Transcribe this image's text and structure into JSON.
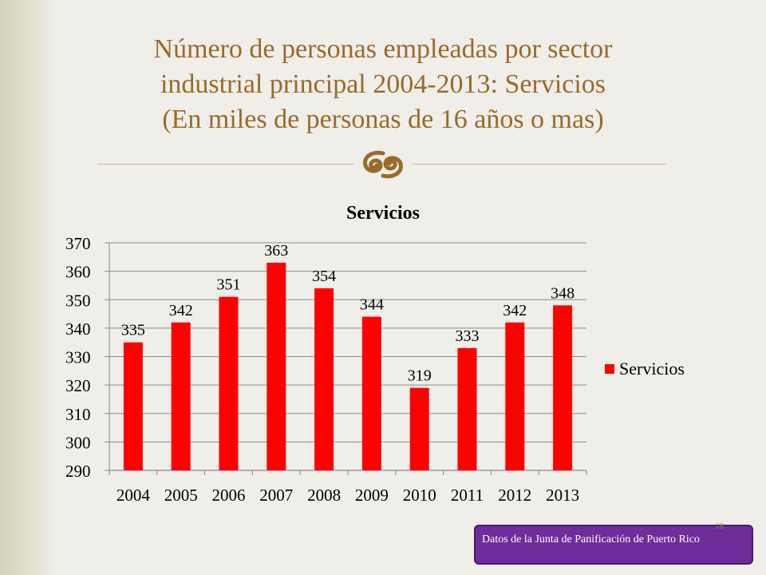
{
  "slide": {
    "title_lines": [
      "Número de personas empleadas por sector",
      "industrial principal 2004-2013: Servicios",
      "(En miles de personas de 16 años o mas)"
    ],
    "title_color": "#9a6a28",
    "ornament_icon": "scroll-ornament-icon",
    "source_note": "Datos de la Junta de Panificación de Puerto Rico",
    "source_box_color": "#6f2c9a",
    "page_number": "18"
  },
  "chart_data": {
    "type": "bar",
    "title": "Servicios",
    "categories": [
      "2004",
      "2005",
      "2006",
      "2007",
      "2008",
      "2009",
      "2010",
      "2011",
      "2012",
      "2013"
    ],
    "series": [
      {
        "name": "Servicios",
        "color": "#ff0000",
        "values": [
          335,
          342,
          351,
          363,
          354,
          344,
          319,
          333,
          342,
          348
        ],
        "data_labels": [
          "335",
          "342",
          "351",
          "363",
          "354",
          "344",
          "319",
          "333",
          "342",
          "348"
        ]
      }
    ],
    "ylim": [
      290,
      370
    ],
    "yticks": [
      "290",
      "300",
      "310",
      "320",
      "330",
      "340",
      "350",
      "360",
      "370"
    ],
    "xlabel": "",
    "ylabel": "",
    "grid": true,
    "legend_position": "right"
  }
}
